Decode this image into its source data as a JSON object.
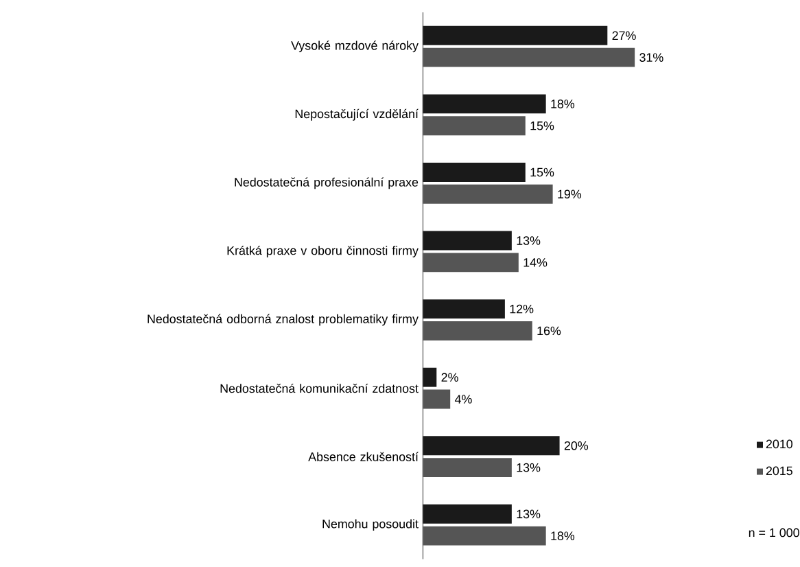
{
  "chart_data": {
    "type": "bar",
    "orientation": "horizontal",
    "categories": [
      "Vysoké mzdové nároky",
      "Nepostačující vzdělání",
      "Nedostatečná profesionální praxe",
      "Krátká praxe v oboru činnosti firmy",
      "Nedostatečná odborná znalost problematiky firmy",
      "Nedostatečná komunikační zdatnost",
      "Absence zkušeností",
      "Nemohu posoudit"
    ],
    "series": [
      {
        "name": "2010",
        "color": "#1a1a1a",
        "values": [
          27,
          18,
          15,
          13,
          12,
          2,
          20,
          13
        ],
        "value_labels": [
          "27%",
          "18%",
          "15%",
          "13%",
          "12%",
          "2%",
          "20%",
          "13%"
        ]
      },
      {
        "name": "2015",
        "color": "#555555",
        "values": [
          31,
          15,
          19,
          14,
          16,
          4,
          13,
          18
        ],
        "value_labels": [
          "31%",
          "15%",
          "19%",
          "14%",
          "16%",
          "4%",
          "13%",
          "18%"
        ]
      }
    ],
    "tick_labels": "y",
    "legend": "right",
    "annotations": [
      "n = 1 000"
    ]
  }
}
